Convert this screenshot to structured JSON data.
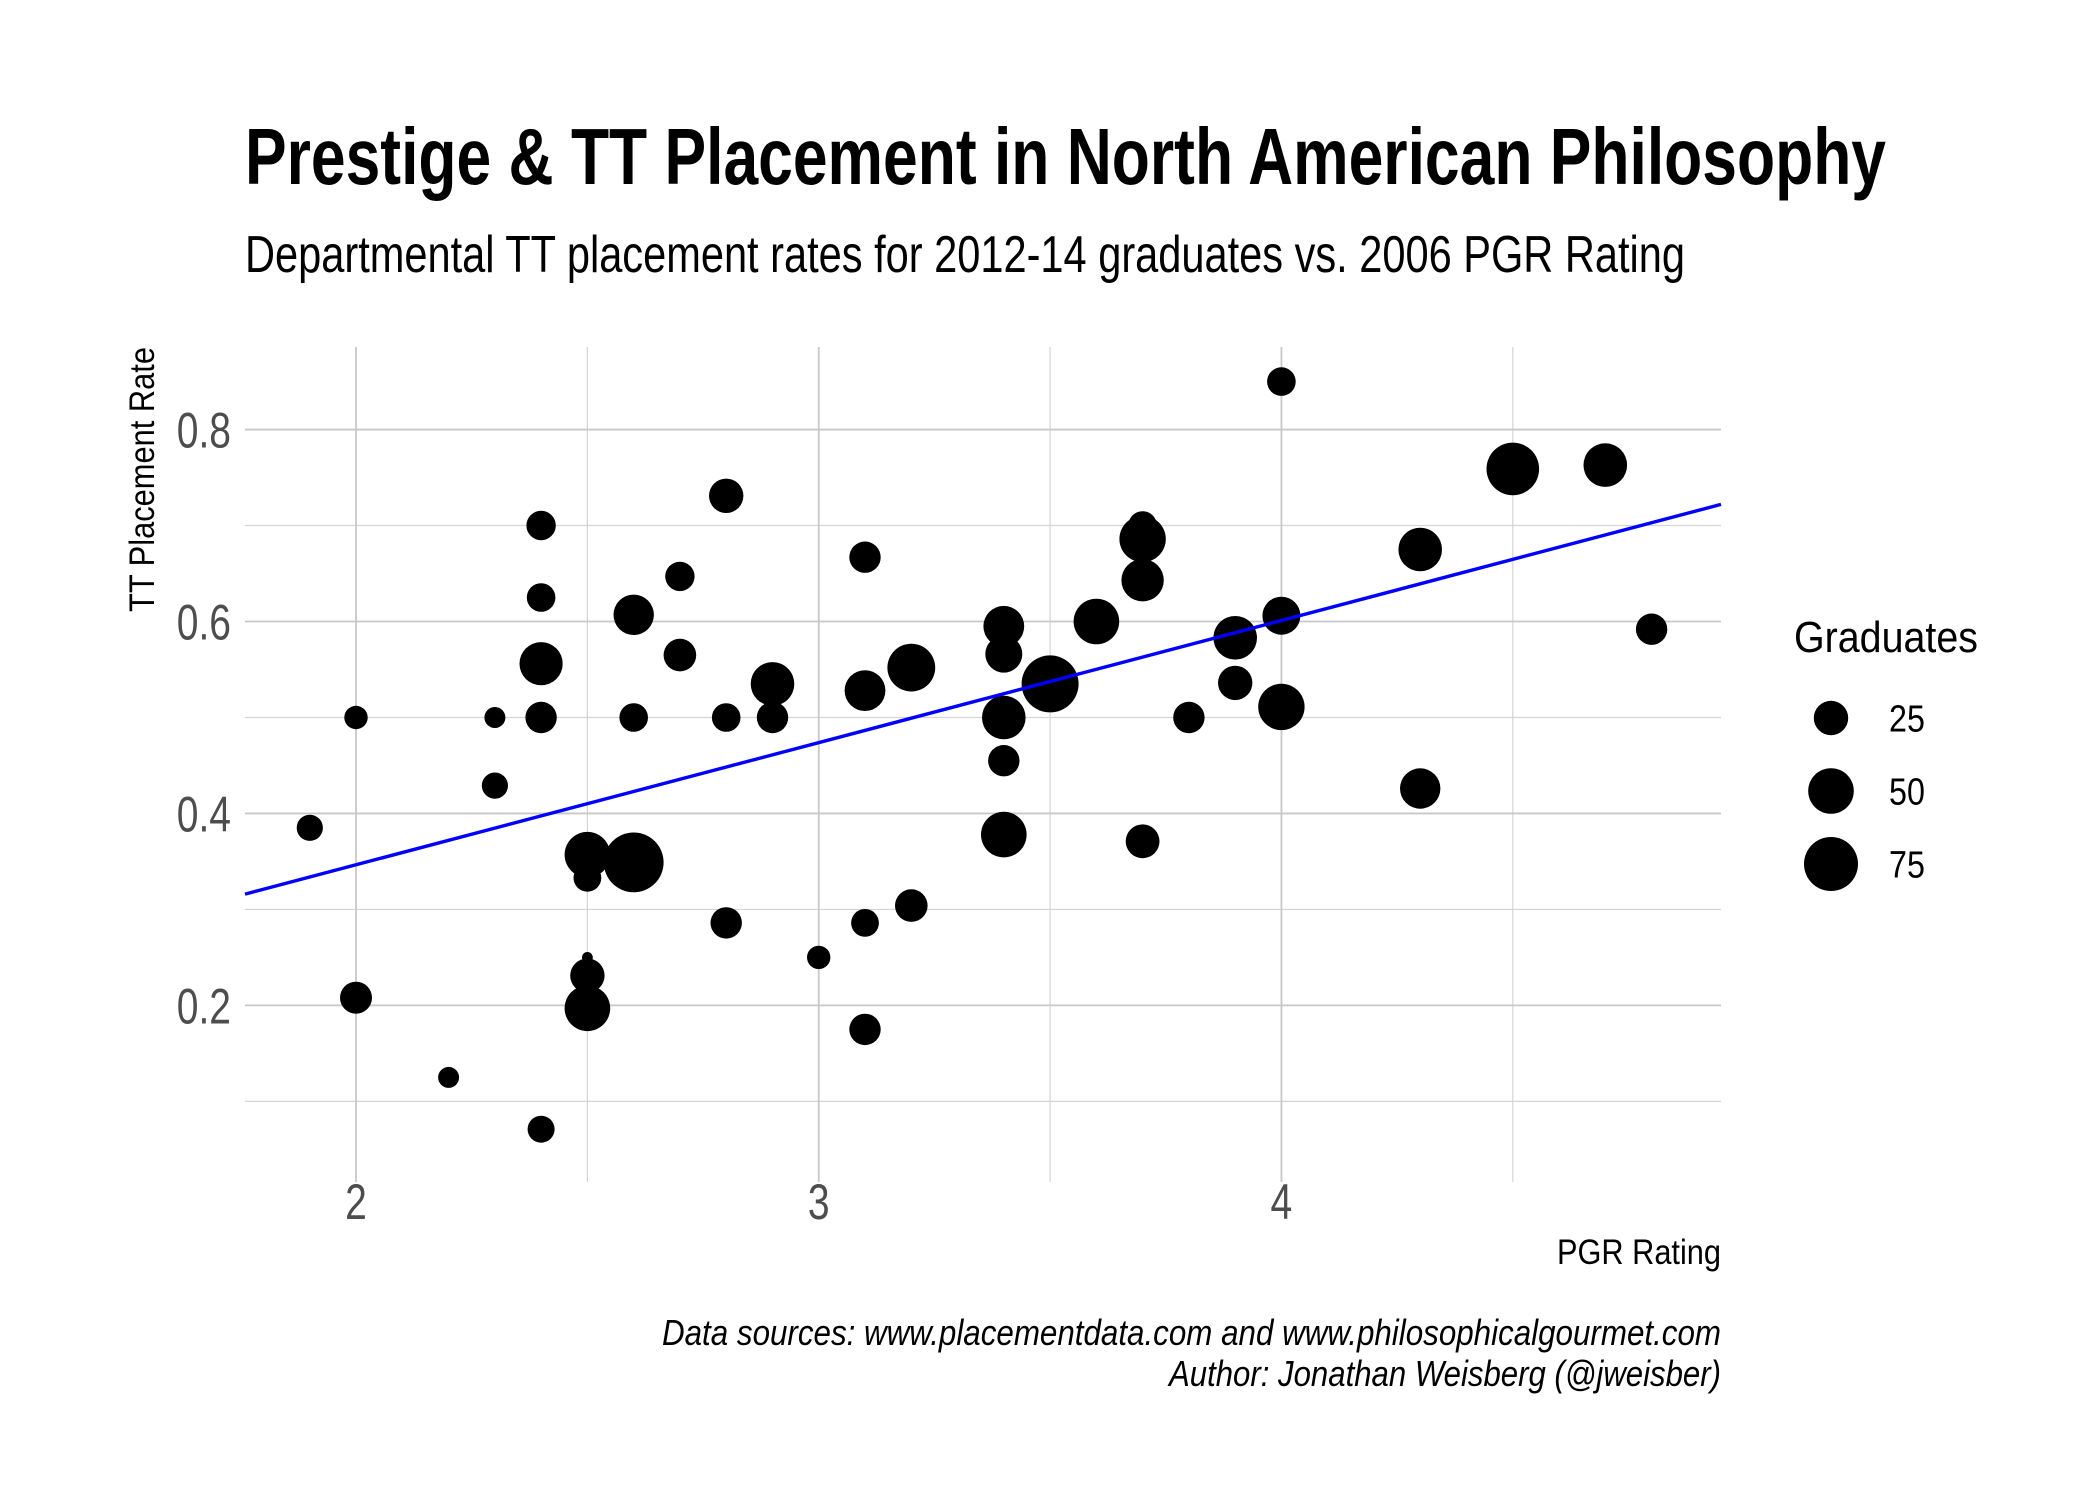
{
  "chart_data": {
    "type": "scatter",
    "title": "Prestige & TT Placement in North American Philosophy",
    "subtitle": "Departmental TT placement rates for 2012-14 graduates vs. 2006 PGR Rating",
    "xlabel": "PGR Rating",
    "ylabel": "TT Placement Rate",
    "xlim": [
      1.76,
      4.95
    ],
    "ylim": [
      0.016,
      0.886
    ],
    "x_ticks": [
      2,
      3,
      4
    ],
    "x_tick_labels": [
      "2",
      "3",
      "4"
    ],
    "y_ticks": [
      0.2,
      0.4,
      0.6,
      0.8
    ],
    "y_tick_labels": [
      "0.2",
      "0.4",
      "0.6",
      "0.8"
    ],
    "grid": true,
    "point_color": "#000000",
    "points": [
      {
        "x": 1.9,
        "y": 0.385,
        "graduates": 13
      },
      {
        "x": 2.0,
        "y": 0.5,
        "graduates": 10
      },
      {
        "x": 2.0,
        "y": 0.208,
        "graduates": 21
      },
      {
        "x": 2.2,
        "y": 0.125,
        "graduates": 8
      },
      {
        "x": 2.3,
        "y": 0.5,
        "graduates": 8
      },
      {
        "x": 2.3,
        "y": 0.429,
        "graduates": 13
      },
      {
        "x": 2.4,
        "y": 0.7,
        "graduates": 17
      },
      {
        "x": 2.4,
        "y": 0.625,
        "graduates": 16
      },
      {
        "x": 2.4,
        "y": 0.556,
        "graduates": 44
      },
      {
        "x": 2.4,
        "y": 0.5,
        "graduates": 20
      },
      {
        "x": 2.4,
        "y": 0.071,
        "graduates": 14
      },
      {
        "x": 2.5,
        "y": 0.357,
        "graduates": 50
      },
      {
        "x": 2.5,
        "y": 0.333,
        "graduates": 15
      },
      {
        "x": 2.5,
        "y": 0.25,
        "graduates": 4
      },
      {
        "x": 2.5,
        "y": 0.231,
        "graduates": 25
      },
      {
        "x": 2.5,
        "y": 0.197,
        "graduates": 50
      },
      {
        "x": 2.6,
        "y": 0.607,
        "graduates": 37
      },
      {
        "x": 2.6,
        "y": 0.5,
        "graduates": 16
      },
      {
        "x": 2.6,
        "y": 0.349,
        "graduates": 95
      },
      {
        "x": 2.7,
        "y": 0.647,
        "graduates": 17
      },
      {
        "x": 2.7,
        "y": 0.565,
        "graduates": 22
      },
      {
        "x": 2.8,
        "y": 0.731,
        "graduates": 25
      },
      {
        "x": 2.8,
        "y": 0.5,
        "graduates": 16
      },
      {
        "x": 2.8,
        "y": 0.286,
        "graduates": 20
      },
      {
        "x": 2.9,
        "y": 0.535,
        "graduates": 45
      },
      {
        "x": 2.9,
        "y": 0.5,
        "graduates": 20
      },
      {
        "x": 3.0,
        "y": 0.25,
        "graduates": 10
      },
      {
        "x": 3.1,
        "y": 0.667,
        "graduates": 20
      },
      {
        "x": 3.1,
        "y": 0.528,
        "graduates": 38
      },
      {
        "x": 3.1,
        "y": 0.286,
        "graduates": 15
      },
      {
        "x": 3.1,
        "y": 0.175,
        "graduates": 20
      },
      {
        "x": 3.2,
        "y": 0.552,
        "graduates": 56
      },
      {
        "x": 3.2,
        "y": 0.304,
        "graduates": 22
      },
      {
        "x": 3.4,
        "y": 0.595,
        "graduates": 38
      },
      {
        "x": 3.4,
        "y": 0.566,
        "graduates": 30
      },
      {
        "x": 3.4,
        "y": 0.5,
        "graduates": 45
      },
      {
        "x": 3.4,
        "y": 0.455,
        "graduates": 20
      },
      {
        "x": 3.4,
        "y": 0.378,
        "graduates": 50
      },
      {
        "x": 3.5,
        "y": 0.535,
        "graduates": 85
      },
      {
        "x": 3.6,
        "y": 0.6,
        "graduates": 50
      },
      {
        "x": 3.7,
        "y": 0.7,
        "graduates": 16
      },
      {
        "x": 3.7,
        "y": 0.686,
        "graduates": 52
      },
      {
        "x": 3.7,
        "y": 0.643,
        "graduates": 42
      },
      {
        "x": 3.7,
        "y": 0.371,
        "graduates": 24
      },
      {
        "x": 3.8,
        "y": 0.5,
        "graduates": 20
      },
      {
        "x": 3.9,
        "y": 0.583,
        "graduates": 45
      },
      {
        "x": 3.9,
        "y": 0.536,
        "graduates": 25
      },
      {
        "x": 4.0,
        "y": 0.85,
        "graduates": 16
      },
      {
        "x": 4.0,
        "y": 0.606,
        "graduates": 32
      },
      {
        "x": 4.0,
        "y": 0.511,
        "graduates": 52
      },
      {
        "x": 4.3,
        "y": 0.675,
        "graduates": 45
      },
      {
        "x": 4.3,
        "y": 0.426,
        "graduates": 37
      },
      {
        "x": 4.5,
        "y": 0.759,
        "graduates": 70
      },
      {
        "x": 4.7,
        "y": 0.763,
        "graduates": 45
      },
      {
        "x": 4.8,
        "y": 0.592,
        "graduates": 20
      }
    ],
    "trend_line": {
      "x": [
        1.76,
        4.95
      ],
      "y": [
        0.316,
        0.722
      ],
      "color": "#0000FF"
    },
    "size_legend": {
      "title": "Graduates",
      "values": [
        25,
        50,
        75
      ],
      "labels": [
        "25",
        "50",
        "75"
      ],
      "position": "right"
    },
    "caption": [
      "Data sources: www.placementdata.com and www.philosophicalgourmet.com",
      "Author: Jonathan Weisberg (@jweisber)"
    ]
  }
}
